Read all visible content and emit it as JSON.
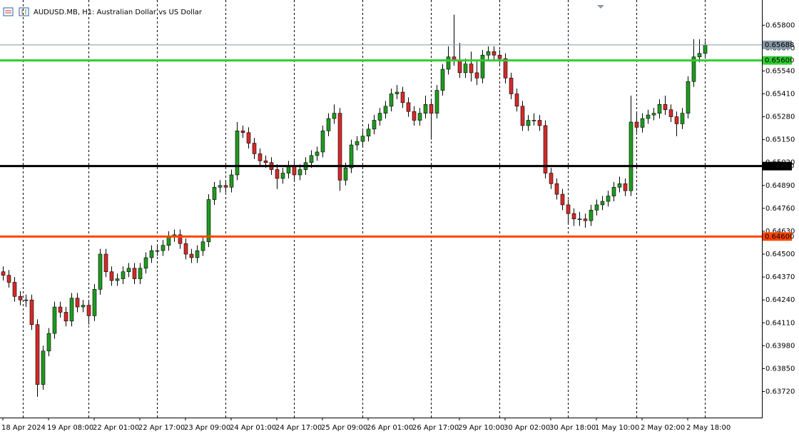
{
  "chart_data": {
    "type": "candlestick",
    "title": "AUDUSD.MB, H1:  Australian Dollar vs US Dollar",
    "up_color": "#1f9a1f",
    "down_color": "#d42a2a",
    "open": [
      0.644,
      0.6438,
      0.6434,
      0.6426,
      0.6424,
      0.6424,
      0.641,
      0.6376,
      0.6395,
      0.6405,
      0.642,
      0.6417,
      0.6412,
      0.6425,
      0.642,
      0.6421,
      0.6415,
      0.643,
      0.645,
      0.644,
      0.6435,
      0.6436,
      0.644,
      0.6442,
      0.6436,
      0.6442,
      0.6448,
      0.6452,
      0.6452,
      0.6455,
      0.646,
      0.6461,
      0.6456,
      0.645,
      0.6448,
      0.6452,
      0.6457,
      0.6481,
      0.6488,
      0.6489,
      0.6488,
      0.6495,
      0.652,
      0.6519,
      0.6513,
      0.6507,
      0.6503,
      0.6502,
      0.6498,
      0.6493,
      0.6496,
      0.65,
      0.6495,
      0.6498,
      0.6502,
      0.6506,
      0.6508,
      0.652,
      0.6527,
      0.653,
      0.6492,
      0.6499,
      0.6512,
      0.6514,
      0.6517,
      0.6521,
      0.6526,
      0.653,
      0.6534,
      0.6541,
      0.6542,
      0.6536,
      0.6531,
      0.6526,
      0.653,
      0.6535,
      0.653,
      0.6543,
      0.6555,
      0.6562,
      0.656,
      0.6553,
      0.6558,
      0.6553,
      0.655,
      0.6563,
      0.6565,
      0.6563,
      0.6561,
      0.655,
      0.6541,
      0.6534,
      0.6523,
      0.6526,
      0.6526,
      0.6523,
      0.6496,
      0.649,
      0.6484,
      0.6478,
      0.6473,
      0.647,
      0.647,
      0.6469,
      0.6475,
      0.6478,
      0.648,
      0.6483,
      0.6488,
      0.649,
      0.6486,
      0.6525,
      0.6522,
      0.6527,
      0.6529,
      0.653,
      0.6535,
      0.6532,
      0.6528,
      0.6524,
      0.653,
      0.6548,
      0.6562,
      0.6564
    ],
    "high": [
      0.6443,
      0.6441,
      0.6437,
      0.6429,
      0.6427,
      0.6427,
      0.6413,
      0.6398,
      0.6408,
      0.6423,
      0.6423,
      0.642,
      0.6428,
      0.6428,
      0.6424,
      0.6424,
      0.6433,
      0.6453,
      0.6453,
      0.6443,
      0.6439,
      0.6443,
      0.6445,
      0.6445,
      0.6445,
      0.6451,
      0.6455,
      0.6455,
      0.6458,
      0.6463,
      0.6464,
      0.6464,
      0.6459,
      0.6453,
      0.6455,
      0.646,
      0.6484,
      0.6491,
      0.6492,
      0.6492,
      0.6498,
      0.6525,
      0.6523,
      0.6522,
      0.6516,
      0.651,
      0.6506,
      0.6505,
      0.6501,
      0.6499,
      0.6503,
      0.6503,
      0.6501,
      0.6505,
      0.6509,
      0.6511,
      0.6523,
      0.653,
      0.6535,
      0.6533,
      0.6502,
      0.6515,
      0.6517,
      0.652,
      0.6524,
      0.6529,
      0.6533,
      0.6537,
      0.6544,
      0.6546,
      0.6545,
      0.6539,
      0.6534,
      0.6533,
      0.654,
      0.6538,
      0.6546,
      0.6558,
      0.6568,
      0.6586,
      0.657,
      0.6561,
      0.6565,
      0.656,
      0.6566,
      0.6568,
      0.6568,
      0.6566,
      0.6564,
      0.6553,
      0.6544,
      0.6537,
      0.6529,
      0.653,
      0.6529,
      0.6526,
      0.6499,
      0.6493,
      0.6487,
      0.6481,
      0.6476,
      0.6474,
      0.6473,
      0.6478,
      0.6481,
      0.6483,
      0.6486,
      0.6491,
      0.6494,
      0.6493,
      0.654,
      0.653,
      0.653,
      0.6532,
      0.6533,
      0.6538,
      0.654,
      0.6535,
      0.6531,
      0.6533,
      0.6551,
      0.6572,
      0.6572,
      0.6571
    ],
    "low": [
      0.6435,
      0.6431,
      0.6423,
      0.6421,
      0.642,
      0.6407,
      0.6369,
      0.6373,
      0.6392,
      0.6402,
      0.6414,
      0.6409,
      0.6409,
      0.6417,
      0.6417,
      0.641,
      0.6412,
      0.6427,
      0.6437,
      0.6432,
      0.6432,
      0.6433,
      0.6437,
      0.6433,
      0.6433,
      0.6439,
      0.6445,
      0.6449,
      0.6449,
      0.6452,
      0.6457,
      0.6453,
      0.6447,
      0.6445,
      0.6445,
      0.6449,
      0.6454,
      0.6478,
      0.6485,
      0.6485,
      0.6485,
      0.6492,
      0.6516,
      0.651,
      0.6504,
      0.65,
      0.6499,
      0.6495,
      0.6487,
      0.649,
      0.6493,
      0.6492,
      0.6492,
      0.6495,
      0.6499,
      0.6503,
      0.6505,
      0.6517,
      0.6524,
      0.6486,
      0.6489,
      0.6496,
      0.6509,
      0.6511,
      0.6514,
      0.6518,
      0.6523,
      0.6527,
      0.6531,
      0.6538,
      0.6533,
      0.6528,
      0.6523,
      0.6523,
      0.6527,
      0.6515,
      0.6527,
      0.654,
      0.6552,
      0.6557,
      0.655,
      0.655,
      0.6548,
      0.6546,
      0.6547,
      0.656,
      0.656,
      0.6558,
      0.6547,
      0.6538,
      0.6531,
      0.652,
      0.652,
      0.6523,
      0.652,
      0.6493,
      0.6487,
      0.6481,
      0.6475,
      0.6467,
      0.6466,
      0.6466,
      0.6465,
      0.6466,
      0.6472,
      0.6475,
      0.6477,
      0.648,
      0.6485,
      0.6483,
      0.6483,
      0.6519,
      0.6519,
      0.6524,
      0.6526,
      0.6527,
      0.6529,
      0.6525,
      0.6517,
      0.6521,
      0.6527,
      0.6545,
      0.6559,
      0.6561
    ],
    "close": [
      0.6438,
      0.6434,
      0.6426,
      0.6424,
      0.6424,
      0.641,
      0.6376,
      0.6395,
      0.6405,
      0.642,
      0.6417,
      0.6412,
      0.6425,
      0.642,
      0.6421,
      0.6415,
      0.643,
      0.645,
      0.644,
      0.6435,
      0.6436,
      0.644,
      0.6442,
      0.6436,
      0.6442,
      0.6448,
      0.6452,
      0.6452,
      0.6455,
      0.646,
      0.6461,
      0.6456,
      0.645,
      0.6448,
      0.6452,
      0.6457,
      0.6481,
      0.6488,
      0.6489,
      0.6488,
      0.6495,
      0.652,
      0.6519,
      0.6513,
      0.6507,
      0.6503,
      0.6502,
      0.6498,
      0.6493,
      0.6496,
      0.65,
      0.6495,
      0.6498,
      0.6502,
      0.6506,
      0.6508,
      0.652,
      0.6527,
      0.653,
      0.6492,
      0.6499,
      0.6512,
      0.6514,
      0.6517,
      0.6521,
      0.6526,
      0.653,
      0.6534,
      0.6541,
      0.6542,
      0.6536,
      0.6531,
      0.6526,
      0.653,
      0.6535,
      0.653,
      0.6543,
      0.6555,
      0.6562,
      0.656,
      0.6553,
      0.6558,
      0.6553,
      0.655,
      0.6563,
      0.6565,
      0.6563,
      0.6561,
      0.655,
      0.6541,
      0.6534,
      0.6523,
      0.6526,
      0.6526,
      0.6523,
      0.6496,
      0.649,
      0.6484,
      0.6478,
      0.6473,
      0.647,
      0.647,
      0.6469,
      0.6475,
      0.6478,
      0.648,
      0.6483,
      0.6488,
      0.649,
      0.6486,
      0.6525,
      0.6522,
      0.6527,
      0.6529,
      0.653,
      0.6535,
      0.6532,
      0.6528,
      0.6524,
      0.653,
      0.6548,
      0.6562,
      0.6564,
      0.65688
    ],
    "xlim": [
      -0.5,
      133
    ],
    "ylim": [
      0.63572,
      0.65943
    ],
    "xticks": [
      {
        "value": 0,
        "label": "18 Apr 2024"
      },
      {
        "value": 8,
        "label": "19 Apr 08:00"
      },
      {
        "value": 16,
        "label": "22 Apr 01:00"
      },
      {
        "value": 24,
        "label": "22 Apr 17:00"
      },
      {
        "value": 32,
        "label": "23 Apr 09:00"
      },
      {
        "value": 40,
        "label": "24 Apr 01:00"
      },
      {
        "value": 48,
        "label": "24 Apr 17:00"
      },
      {
        "value": 56,
        "label": "25 Apr 09:00"
      },
      {
        "value": 64,
        "label": "26 Apr 01:00"
      },
      {
        "value": 72,
        "label": "26 Apr 17:00"
      },
      {
        "value": 80,
        "label": "29 Apr 10:00"
      },
      {
        "value": 88,
        "label": "30 Apr 02:00"
      },
      {
        "value": 96,
        "label": "30 Apr 18:00"
      },
      {
        "value": 104,
        "label": "1 May 10:00"
      },
      {
        "value": 112,
        "label": "2 May 02:00"
      },
      {
        "value": 120,
        "label": "2 May 18:00"
      }
    ],
    "xgrid": [
      3.5,
      15,
      27,
      39,
      51,
      63,
      75,
      87,
      99,
      111,
      123
    ],
    "yticks": [
      {
        "value": 0.658,
        "label": "0.65800"
      },
      {
        "value": 0.6567,
        "label": "0.65670"
      },
      {
        "value": 0.6554,
        "label": "0.65540"
      },
      {
        "value": 0.6541,
        "label": "0.65410"
      },
      {
        "value": 0.6528,
        "label": "0.65280"
      },
      {
        "value": 0.6515,
        "label": "0.65150"
      },
      {
        "value": 0.6502,
        "label": "0.65020"
      },
      {
        "value": 0.6489,
        "label": "0.64890"
      },
      {
        "value": 0.6476,
        "label": "0.64760"
      },
      {
        "value": 0.6463,
        "label": "0.64630"
      },
      {
        "value": 0.645,
        "label": "0.64500"
      },
      {
        "value": 0.6437,
        "label": "0.64370"
      },
      {
        "value": 0.6424,
        "label": "0.64240"
      },
      {
        "value": 0.6411,
        "label": "0.64110"
      },
      {
        "value": 0.6398,
        "label": "0.63980"
      },
      {
        "value": 0.6385,
        "label": "0.63850"
      },
      {
        "value": 0.6372,
        "label": "0.63720"
      }
    ],
    "levels": [
      {
        "value": 0.65688,
        "label": "0.65688",
        "color": "#8899a6"
      },
      {
        "value": 0.656,
        "label": "0.65600",
        "color": "#32cd32"
      },
      {
        "value": 0.65,
        "label": "0.65000",
        "color": "#000000"
      },
      {
        "value": 0.646,
        "label": "0.64600",
        "color": "#ff4500"
      }
    ]
  }
}
